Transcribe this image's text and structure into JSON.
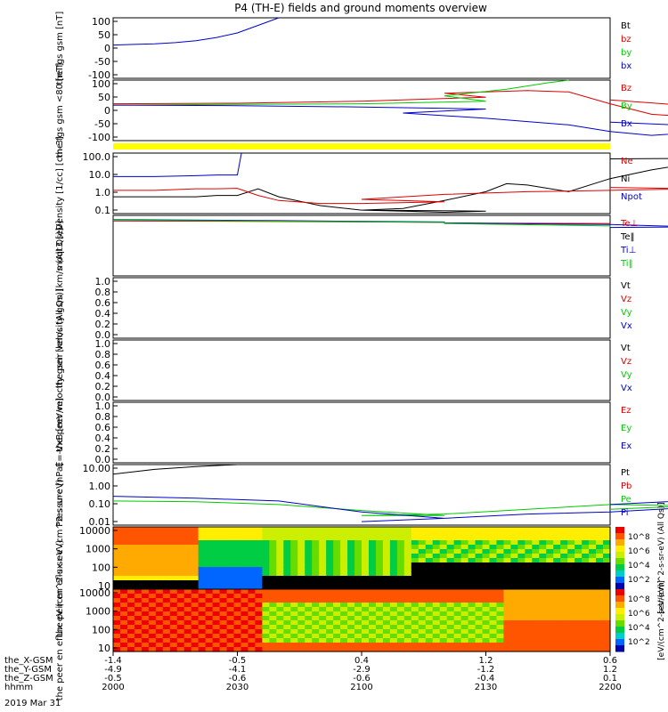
{
  "title": "P4 (TH-E) fields and ground moments overview",
  "colors": {
    "black": "#000000",
    "red": "#dd0000",
    "green": "#00cc00",
    "blue": "#0000cc",
    "yellow": "#ffff00"
  },
  "chart_data": [
    {
      "type": "line",
      "panel": "fgs_gsm",
      "ylabel": "the fgs gsm [nT]",
      "ylim": [
        -100,
        100
      ],
      "yticks": [
        "100",
        "50",
        "0",
        "-50",
        "-100"
      ],
      "legend": [
        {
          "name": "Bt",
          "color": "#000000"
        },
        {
          "name": "bz",
          "color": "#dd0000"
        },
        {
          "name": "by",
          "color": "#00cc00"
        },
        {
          "name": "bx",
          "color": "#0000cc"
        }
      ],
      "series": [
        {
          "name": "bx",
          "x": [
            2000,
            2005,
            2010,
            2015,
            2020,
            2025,
            2030,
            2035,
            2040
          ],
          "values": [
            10,
            12,
            14,
            18,
            24,
            35,
            50,
            75,
            100
          ]
        }
      ]
    },
    {
      "type": "line",
      "panel": "fgs_gsm_lt80",
      "ylabel": "the fgs gsm <80 [nT]",
      "ylim": [
        -130,
        100
      ],
      "yticks": [
        "100",
        "50",
        "0",
        "-50",
        "-100"
      ],
      "legend": [
        {
          "name": "Bz",
          "color": "#dd0000"
        },
        {
          "name": "By",
          "color": "#00cc00"
        },
        {
          "name": "Bx",
          "color": "#0000cc"
        }
      ],
      "series": [
        {
          "name": "Bz",
          "x": [
            2000,
            2030,
            2060,
            2090,
            2120,
            2140,
            2150,
            2160,
            2170,
            2180,
            2190,
            2200
          ],
          "values": [
            10,
            12,
            20,
            35,
            50,
            60,
            55,
            10,
            -30,
            -40,
            -10,
            25
          ]
        },
        {
          "name": "By",
          "x": [
            2000,
            2030,
            2060,
            2090,
            2120,
            2135,
            2145,
            2150
          ],
          "values": [
            5,
            8,
            10,
            20,
            40,
            65,
            90,
            100
          ]
        },
        {
          "name": "Bx",
          "x": [
            2000,
            2030,
            2060,
            2090,
            2110,
            2130,
            2150,
            2160,
            2170,
            2180,
            2190,
            2200
          ],
          "values": [
            5,
            3,
            -2,
            -10,
            -25,
            -45,
            -70,
            -95,
            -110,
            -100,
            -80,
            -60
          ]
        }
      ]
    },
    {
      "type": "line",
      "panel": "density",
      "ylabel": "Density [1/cc] [cm-3]",
      "ylim": [
        0.05,
        200
      ],
      "scale": "log",
      "yticks": [
        "100.0",
        "10.0",
        "1.0",
        "0.1"
      ],
      "legend": [
        {
          "name": "Ne",
          "color": "#dd0000"
        },
        {
          "name": "Ni",
          "color": "#000000"
        },
        {
          "name": "Npot",
          "color": "#0000cc"
        }
      ],
      "series": [
        {
          "name": "Ni",
          "x": [
            2000,
            2010,
            2020,
            2025,
            2030,
            2035,
            2040,
            2050,
            2060,
            2070,
            2080,
            2090,
            2100,
            2110,
            2120,
            2130,
            2135,
            2140,
            2150,
            2160,
            2170,
            2180,
            2190,
            2200
          ],
          "values": [
            0.5,
            0.5,
            0.5,
            0.6,
            0.6,
            1.5,
            0.5,
            0.15,
            0.08,
            0.07,
            0.06,
            0.07,
            0.08,
            0.1,
            0.3,
            1.0,
            3,
            2.5,
            1.0,
            6,
            20,
            50,
            100,
            90
          ]
        },
        {
          "name": "Ne",
          "x": [
            2000,
            2010,
            2020,
            2025,
            2030,
            2035,
            2040,
            2050,
            2060,
            2080,
            2100,
            2120,
            2140,
            2160,
            2180,
            2200
          ],
          "values": [
            1.2,
            1.2,
            1.5,
            1.5,
            1.6,
            0.6,
            0.3,
            0.2,
            0.2,
            0.25,
            0.35,
            0.7,
            1.0,
            1.2,
            1.5,
            1.8
          ]
        },
        {
          "name": "Npot",
          "x": [
            2000,
            2010,
            2020,
            2025,
            2030,
            2031
          ],
          "values": [
            8,
            8,
            9,
            10,
            10,
            200
          ]
        }
      ]
    },
    {
      "type": "line",
      "panel": "temperature",
      "ylabel": "moqt3 [eV]",
      "ylim": [
        1e-07,
        100000
      ],
      "scale": "log",
      "legend": [
        {
          "name": "Te⊥",
          "color": "#dd0000"
        },
        {
          "name": "Te‖",
          "color": "#000000"
        },
        {
          "name": "Ti⊥",
          "color": "#0000cc"
        },
        {
          "name": "Ti‖",
          "color": "#00cc00"
        }
      ],
      "series": [
        {
          "name": "Te⊥",
          "x": [
            2000,
            2040,
            2080,
            2120,
            2160,
            2200
          ],
          "values": [
            8000,
            6000,
            4000,
            3000,
            2500,
            3000
          ]
        },
        {
          "name": "Ti⊥",
          "x": [
            2000,
            2040,
            2080,
            2120,
            2160,
            2180,
            2200
          ],
          "values": [
            15000,
            9000,
            5000,
            3000,
            1500,
            500,
            400
          ]
        },
        {
          "name": "Ti‖",
          "x": [
            2000,
            2040,
            2080,
            2120,
            2160,
            2200
          ],
          "values": [
            12000,
            7000,
            4000,
            2500,
            800,
            600
          ]
        }
      ]
    },
    {
      "type": "line",
      "panel": "peir_velocity",
      "ylabel": "the peir velocity gsm [km/s (All Qs)]",
      "ylim": [
        0,
        1
      ],
      "yticks": [
        "1.0",
        "0.8",
        "0.6",
        "0.4",
        "0.2",
        "0.0"
      ],
      "legend": [
        {
          "name": "Vt",
          "color": "#000000"
        },
        {
          "name": "Vz",
          "color": "#dd0000"
        },
        {
          "name": "Vy",
          "color": "#00cc00"
        },
        {
          "name": "Vx",
          "color": "#0000cc"
        }
      ],
      "series": []
    },
    {
      "type": "line",
      "panel": "peer_velocity",
      "ylabel": "the peer velocity gsm [km/s (All Qs)]",
      "ylim": [
        0,
        1
      ],
      "yticks": [
        "1.0",
        "0.8",
        "0.6",
        "0.4",
        "0.2",
        "0.0"
      ],
      "legend": [
        {
          "name": "Vt",
          "color": "#000000"
        },
        {
          "name": "Vz",
          "color": "#dd0000"
        },
        {
          "name": "Vy",
          "color": "#00cc00"
        },
        {
          "name": "Vx",
          "color": "#0000cc"
        }
      ],
      "series": []
    },
    {
      "type": "line",
      "panel": "efield",
      "ylabel": "E=-VxB [mV/m]",
      "ylim": [
        0,
        1
      ],
      "yticks": [
        "1.0",
        "0.8",
        "0.6",
        "0.4",
        "0.2",
        "0.0"
      ],
      "legend": [
        {
          "name": "Ez",
          "color": "#dd0000"
        },
        {
          "name": "Ey",
          "color": "#00cc00"
        },
        {
          "name": "Ex",
          "color": "#0000cc"
        }
      ],
      "series": []
    },
    {
      "type": "line",
      "panel": "pressure",
      "ylabel": "Pressure [nPa]",
      "ylim": [
        0.003,
        20
      ],
      "scale": "log",
      "yticks": [
        "10.00",
        "1.00",
        "0.10",
        "0.01"
      ],
      "legend": [
        {
          "name": "Pt",
          "color": "#000000"
        },
        {
          "name": "Pb",
          "color": "#dd0000"
        },
        {
          "name": "Pe",
          "color": "#00cc00"
        },
        {
          "name": "Pi",
          "color": "#0000cc"
        }
      ],
      "series": [
        {
          "name": "Pt",
          "x": [
            2000,
            2010,
            2020,
            2030
          ],
          "values": [
            5,
            10,
            15,
            20
          ]
        },
        {
          "name": "Pe",
          "x": [
            2000,
            2020,
            2040,
            2060,
            2080,
            2100,
            2120,
            2140,
            2160,
            2180,
            2200
          ],
          "values": [
            0.1,
            0.09,
            0.06,
            0.025,
            0.012,
            0.012,
            0.015,
            0.03,
            0.06,
            0.05,
            0.03
          ]
        },
        {
          "name": "Pi",
          "x": [
            2000,
            2020,
            2040,
            2060,
            2080,
            2100,
            2120,
            2140,
            2160,
            2180,
            2190,
            2200
          ],
          "values": [
            0.2,
            0.15,
            0.1,
            0.02,
            0.008,
            0.005,
            0.008,
            0.015,
            0.02,
            0.04,
            0.15,
            0.06
          ]
        }
      ]
    },
    {
      "type": "heatmap",
      "panel": "peir_en_eflux",
      "ylabel": "the peir en eflux eV (cm^2-s-sr-eV)",
      "yticks": [
        "10000",
        "1000",
        "100",
        "10"
      ],
      "colorbar_label": "[eV/(cm^2-s-sr-eV) (All Qs)]",
      "colorbar_ticks": [
        "10^8",
        "10^6",
        "10^4",
        "10^2"
      ]
    },
    {
      "type": "heatmap",
      "panel": "peer_en_eflux",
      "ylabel": "the peer en eflux eV (cm^2-s-sr-eV)",
      "yticks": [
        "10000",
        "1000",
        "100",
        "10"
      ],
      "colorbar_label": "[eV/(cm^2-s-sr-eV)]",
      "colorbar_ticks": [
        "10^8",
        "10^6",
        "10^4",
        "10^2"
      ]
    }
  ],
  "axis": {
    "rows": [
      {
        "label": "the_X-GSM",
        "values": [
          "-1.4",
          "-0.5",
          "0.4",
          "1.2",
          "0.6"
        ]
      },
      {
        "label": "the_Y-GSM",
        "values": [
          "-4.9",
          "-4.1",
          "-2.9",
          "-1.2",
          "1.2"
        ]
      },
      {
        "label": "the_Z-GSM",
        "values": [
          "-0.5",
          "-0.6",
          "-0.6",
          "-0.4",
          "0.1"
        ]
      },
      {
        "label": "hhmm",
        "values": [
          "2000",
          "2030",
          "2100",
          "2130",
          "2200"
        ]
      }
    ],
    "date": "2019 Mar 31"
  }
}
